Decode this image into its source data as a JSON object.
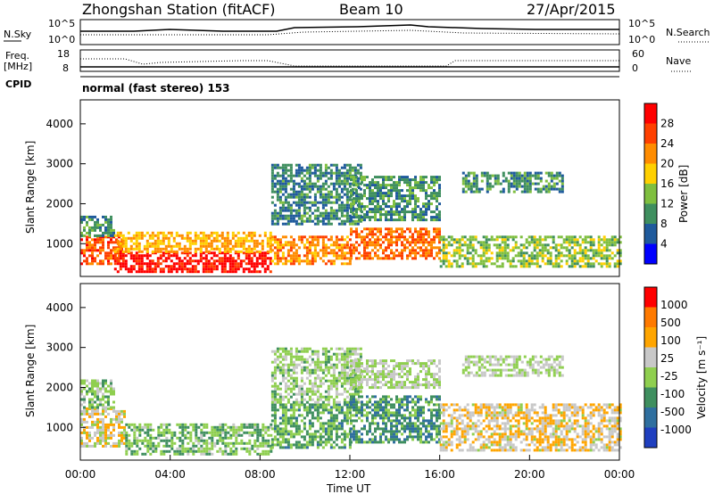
{
  "header": {
    "title": "Zhongshan Station (fitACF)",
    "beam": "Beam 10",
    "date": "27/Apr/2015"
  },
  "top_panels": {
    "nsky": {
      "label": "N.Sky",
      "ticks": [
        "10^5",
        "10^0"
      ],
      "right_ticks": [
        "10^5",
        "10^0"
      ],
      "right_label": "N.Search"
    },
    "freq": {
      "label_line1": "Freq.",
      "label_line2": "[MHz]",
      "ticks": [
        "18",
        "8"
      ],
      "right_ticks": [
        "60",
        "0"
      ],
      "right_label": "Nave"
    },
    "cpid": {
      "label": "CPID",
      "text": "normal (fast stereo) 153"
    }
  },
  "x_axis": {
    "title": "Time UT",
    "ticks": [
      "00:00",
      "04:00",
      "08:00",
      "12:00",
      "16:00",
      "20:00",
      "00:00"
    ]
  },
  "panels": {
    "power": {
      "ylabel": "Slant Range [km]",
      "yticks": [
        "4000",
        "3000",
        "2000",
        "1000"
      ],
      "colorbar_label": "Power [dB]",
      "colorbar_ticks": [
        "28",
        "24",
        "20",
        "16",
        "12",
        "8",
        "4"
      ],
      "colors": [
        "#0000ff",
        "#1f5a9c",
        "#3f8f5f",
        "#7fbf3f",
        "#ffd000",
        "#ff8c00",
        "#ff4000",
        "#ff0000"
      ]
    },
    "velocity": {
      "ylabel": "Slant Range [km]",
      "yticks": [
        "4000",
        "3000",
        "2000",
        "1000"
      ],
      "colorbar_label": "Velocity [m s⁻¹]",
      "colorbar_ticks": [
        "1000",
        "500",
        "100",
        "25",
        "-25",
        "-100",
        "-500",
        "-1000"
      ],
      "colors": [
        "#1f3fbf",
        "#2f6f9f",
        "#3f8f5f",
        "#8fcf4f",
        "#c8c8c8",
        "#ffa500",
        "#ff7a00",
        "#ff0000"
      ]
    }
  },
  "chart_data": [
    {
      "type": "heatmap",
      "title": "Power",
      "xlabel": "Time UT",
      "ylabel": "Slant Range [km]",
      "xlim": [
        0,
        24
      ],
      "ylim": [
        180,
        4600
      ],
      "colorbar": {
        "label": "Power [dB]",
        "range": [
          0,
          32
        ]
      },
      "bands": [
        {
          "t0": 0.0,
          "t1": 1.8,
          "r0": 500,
          "r1": 1200,
          "value": 26
        },
        {
          "t0": 0.0,
          "t1": 1.5,
          "r0": 1200,
          "r1": 1700,
          "value": 10
        },
        {
          "t0": 1.5,
          "t1": 8.5,
          "r0": 300,
          "r1": 800,
          "value": 30
        },
        {
          "t0": 1.5,
          "t1": 8.5,
          "r0": 800,
          "r1": 1300,
          "value": 20
        },
        {
          "t0": 8.5,
          "t1": 12.0,
          "r0": 500,
          "r1": 1200,
          "value": 22
        },
        {
          "t0": 8.5,
          "t1": 12.5,
          "r0": 1500,
          "r1": 3000,
          "value": 9
        },
        {
          "t0": 12.0,
          "t1": 16.0,
          "r0": 600,
          "r1": 1400,
          "value": 24
        },
        {
          "t0": 12.0,
          "t1": 16.0,
          "r0": 1600,
          "r1": 2700,
          "value": 10
        },
        {
          "t0": 16.0,
          "t1": 24.0,
          "r0": 400,
          "r1": 1200,
          "value": 14
        },
        {
          "t0": 17.0,
          "t1": 21.5,
          "r0": 2300,
          "r1": 2800,
          "value": 10
        }
      ]
    },
    {
      "type": "heatmap",
      "title": "Velocity",
      "xlabel": "Time UT",
      "ylabel": "Slant Range [km]",
      "xlim": [
        0,
        24
      ],
      "ylim": [
        180,
        4600
      ],
      "colorbar": {
        "label": "Velocity [m s⁻¹]",
        "range": [
          -1000,
          1000
        ]
      },
      "bands": [
        {
          "t0": 0.0,
          "t1": 2.0,
          "r0": 500,
          "r1": 1500,
          "value": 150
        },
        {
          "t0": 0.0,
          "t1": 1.5,
          "r0": 1500,
          "r1": 2200,
          "value": -120
        },
        {
          "t0": 2.0,
          "t1": 8.5,
          "r0": 300,
          "r1": 1100,
          "value": -200
        },
        {
          "t0": 8.5,
          "t1": 12.0,
          "r0": 500,
          "r1": 1600,
          "value": -300
        },
        {
          "t0": 8.5,
          "t1": 12.5,
          "r0": 1600,
          "r1": 3000,
          "value": -80
        },
        {
          "t0": 12.0,
          "t1": 16.0,
          "r0": 600,
          "r1": 1800,
          "value": -400
        },
        {
          "t0": 12.0,
          "t1": 16.0,
          "r0": 2000,
          "r1": 2700,
          "value": 0
        },
        {
          "t0": 16.0,
          "t1": 24.0,
          "r0": 400,
          "r1": 1600,
          "value": 200
        },
        {
          "t0": 17.0,
          "t1": 21.5,
          "r0": 2300,
          "r1": 2800,
          "value": 0
        }
      ]
    }
  ]
}
